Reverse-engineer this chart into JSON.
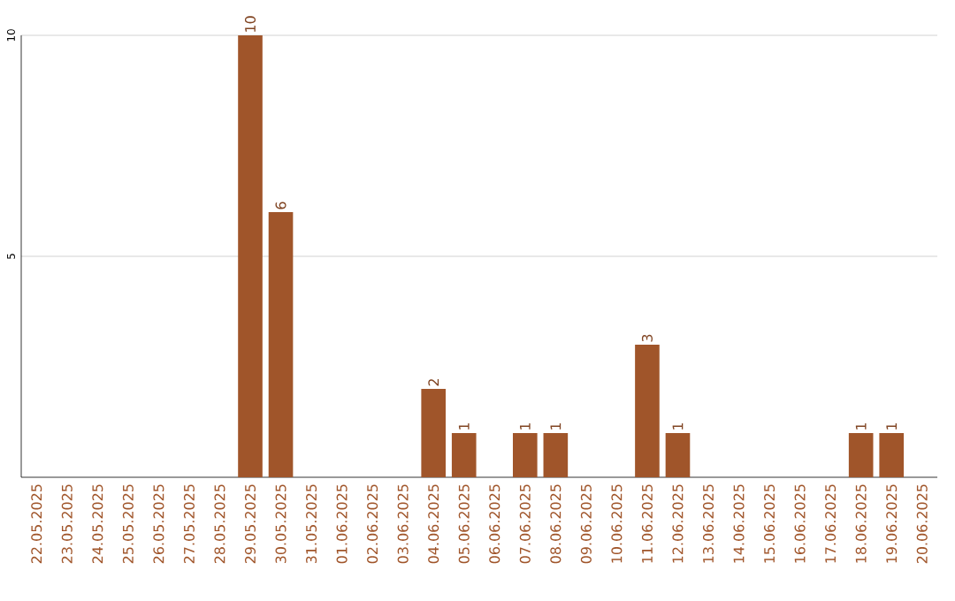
{
  "chart_data": {
    "type": "bar",
    "categories": [
      "22.05.2025",
      "23.05.2025",
      "24.05.2025",
      "25.05.2025",
      "26.05.2025",
      "27.05.2025",
      "28.05.2025",
      "29.05.2025",
      "30.05.2025",
      "31.05.2025",
      "01.06.2025",
      "02.06.2025",
      "03.06.2025",
      "04.06.2025",
      "05.06.2025",
      "06.06.2025",
      "07.06.2025",
      "08.06.2025",
      "09.06.2025",
      "10.06.2025",
      "11.06.2025",
      "12.06.2025",
      "13.06.2025",
      "14.06.2025",
      "15.06.2025",
      "16.06.2025",
      "17.06.2025",
      "18.06.2025",
      "19.06.2025",
      "20.06.2025"
    ],
    "values": [
      0,
      0,
      0,
      0,
      0,
      0,
      0,
      10,
      6,
      0,
      0,
      0,
      0,
      2,
      1,
      0,
      1,
      1,
      0,
      0,
      3,
      1,
      0,
      0,
      0,
      0,
      0,
      1,
      1,
      0
    ],
    "value_labels": [
      null,
      null,
      null,
      null,
      null,
      null,
      null,
      "10",
      "6",
      null,
      null,
      null,
      null,
      "2",
      "1",
      null,
      "1",
      "1",
      null,
      null,
      "3",
      "1",
      null,
      null,
      null,
      null,
      null,
      "1",
      "1",
      null
    ],
    "color": "#a0552a",
    "ylim": [
      0,
      10
    ],
    "yticks": [
      5,
      10
    ],
    "grid": "y"
  }
}
